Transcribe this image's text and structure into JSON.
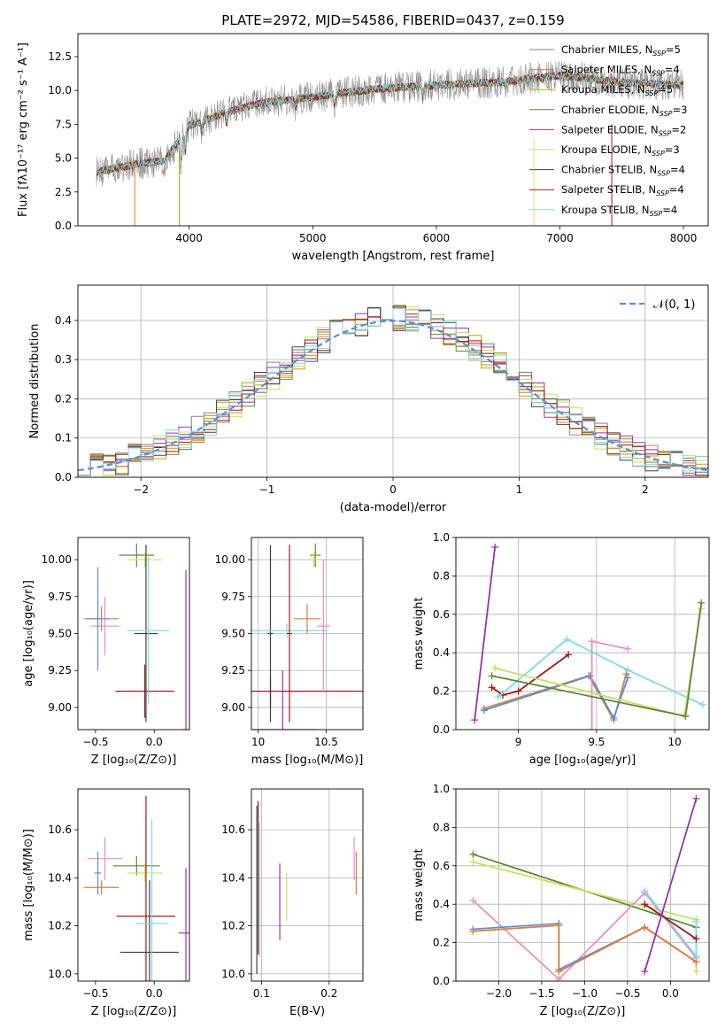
{
  "chart_data": [
    {
      "id": "spectrum",
      "type": "line",
      "title": "PLATE=2972, MJD=54586, FIBERID=0437, z=0.159",
      "xlabel": "wavelength [Angstrom, rest frame]",
      "ylabel": "Flux [fλ10⁻¹⁷ erg cm⁻² s⁻¹ A⁻¹]",
      "xlim": [
        3100,
        8200
      ],
      "ylim": [
        0,
        14.2
      ],
      "xticks": [
        4000,
        5000,
        6000,
        7000,
        8000
      ],
      "yticks": [
        0.0,
        2.5,
        5.0,
        7.5,
        10.0,
        12.5
      ],
      "ytick_format": 1,
      "grid": false,
      "legend_position": "top-right",
      "data_range_x": [
        3250,
        8000
      ],
      "continuum": [
        [
          3250,
          4.0
        ],
        [
          3600,
          4.6
        ],
        [
          3800,
          4.8
        ],
        [
          4000,
          7.4
        ],
        [
          4300,
          8.4
        ],
        [
          4600,
          9.1
        ],
        [
          5000,
          9.5
        ],
        [
          5500,
          10.1
        ],
        [
          6000,
          10.4
        ],
        [
          6500,
          10.6
        ],
        [
          7000,
          11.1
        ],
        [
          7500,
          10.6
        ],
        [
          8000,
          10.4
        ]
      ],
      "series": [
        {
          "name": "Chabrier MILES, N_SSP=5",
          "color": "#808080",
          "noisy": true
        },
        {
          "name": "Salpeter MILES, N_SSP=4",
          "color": "#e07b39"
        },
        {
          "name": "Kroupa MILES, N_SSP=5",
          "color": "#c8a000"
        },
        {
          "name": "Chabrier ELODIE, N_SSP=3",
          "color": "#5a8a3a"
        },
        {
          "name": "Salpeter ELODIE, N_SSP=2",
          "color": "#9b30b0"
        },
        {
          "name": "Kroupa ELODIE, N_SSP=3",
          "color": "#c8e060"
        },
        {
          "name": "Chabrier STELIB, N_SSP=4",
          "color": "#404040"
        },
        {
          "name": "Salpeter STELIB, N_SSP=4",
          "color": "#a01818"
        },
        {
          "name": "Kroupa STELIB, N_SSP=4",
          "color": "#80d8e8"
        }
      ]
    },
    {
      "id": "residuals",
      "type": "histogram",
      "xlabel": "(data-model)/error",
      "ylabel": "Normed distribution",
      "xlim": [
        -2.5,
        2.5
      ],
      "ylim": [
        0,
        0.49
      ],
      "xticks": [
        -2,
        -1,
        0,
        1,
        2
      ],
      "yticks": [
        0.0,
        0.1,
        0.2,
        0.3,
        0.4
      ],
      "ytick_format": 1,
      "grid": true,
      "bin_width": 0.1,
      "reference_curve": {
        "name": "𝒩(0, 1)",
        "color": "#5b8fd8",
        "style": "dashed"
      },
      "legend_position": "top-right",
      "hist_colors": [
        "#808080",
        "#e07b39",
        "#c8a000",
        "#5a8a3a",
        "#9b30b0",
        "#c8e060",
        "#404040",
        "#a01818",
        "#80d8e8"
      ]
    },
    {
      "id": "z-age",
      "type": "errorbar",
      "xlabel": "Z [log₁₀(Z/Z⊙)]",
      "ylabel": "age  [log₁₀(age/yr)]",
      "xlim": [
        -0.65,
        0.3
      ],
      "ylim": [
        8.85,
        10.15
      ],
      "xticks": [
        -0.5,
        0.0
      ],
      "xtick_labels": [
        "−0.5",
        "0.0"
      ],
      "yticks": [
        9.0,
        9.25,
        9.5,
        9.75,
        10.0
      ],
      "ytick_format": 2,
      "grid": false,
      "points": [
        {
          "x": -0.45,
          "y": 9.6,
          "xerr": 0.15,
          "yerr": 0.08,
          "color": "#e07b39"
        },
        {
          "x": -0.42,
          "y": 9.55,
          "xerr": 0.12,
          "yerr": 0.2,
          "color": "#e88fc8"
        },
        {
          "x": -0.48,
          "y": 9.6,
          "xerr": 0.1,
          "yerr": 0.35,
          "color": "#5b8fd8"
        },
        {
          "x": -0.15,
          "y": 10.03,
          "xerr": 0.15,
          "yerr": 0.08,
          "color": "#5a8a3a"
        },
        {
          "x": -0.08,
          "y": 10.0,
          "xerr": 0.15,
          "yerr": 0.05,
          "color": "#c8e060"
        },
        {
          "x": -0.08,
          "y": 9.11,
          "xerr": 0.25,
          "yerr": 0.18,
          "color": "#a01818"
        },
        {
          "x": -0.07,
          "y": 9.5,
          "xerr": 0.1,
          "yerr": 0.6,
          "color": "#404040"
        },
        {
          "x": -0.05,
          "y": 9.52,
          "xerr": 0.18,
          "yerr": 0.5,
          "color": "#80d8e8"
        },
        {
          "x": 0.27,
          "y": 8.85,
          "xerr": 0.03,
          "yerr": 1.08,
          "color": "#9b30b0"
        }
      ]
    },
    {
      "id": "mass-age",
      "type": "errorbar",
      "xlabel": "mass [log₁₀(M/M⊙)]",
      "ylabel": "",
      "xlim": [
        9.95,
        10.77
      ],
      "ylim": [
        8.85,
        10.15
      ],
      "xticks": [
        10.0,
        10.5
      ],
      "yticks": [
        9.0,
        9.25,
        9.5,
        9.75,
        10.0
      ],
      "ytick_format": 2,
      "grid": true,
      "points": [
        {
          "x": 10.09,
          "y": 9.11,
          "xerr": 0.95,
          "yerr": 0.1,
          "color": "#a01818"
        },
        {
          "x": 10.09,
          "y": 9.5,
          "xerr": 0.02,
          "yerr": 0.6,
          "color": "#404040"
        },
        {
          "x": 10.18,
          "y": 8.85,
          "xerr": 0.25,
          "yerr": 0.4,
          "color": "#9b30b0"
        },
        {
          "x": 10.21,
          "y": 9.52,
          "xerr": 0.3,
          "yerr": 0.05,
          "color": "#80d8e8"
        },
        {
          "x": 10.23,
          "y": 9.5,
          "xerr": 0.02,
          "yerr": 0.6,
          "color": "#a01818"
        },
        {
          "x": 10.36,
          "y": 9.6,
          "xerr": 0.1,
          "yerr": 0.1,
          "color": "#e07b39"
        },
        {
          "x": 10.48,
          "y": 9.55,
          "xerr": 0.05,
          "yerr": 0.45,
          "color": "#e88fc8"
        },
        {
          "x": 10.42,
          "y": 10.03,
          "xerr": 0.04,
          "yerr": 0.08,
          "color": "#5a8a3a"
        },
        {
          "x": 10.41,
          "y": 10.0,
          "xerr": 0.04,
          "yerr": 0.05,
          "color": "#c8e060"
        }
      ]
    },
    {
      "id": "weight-age",
      "type": "line",
      "xlabel": "age  [log₁₀(age/yr)]",
      "ylabel": "mass weight",
      "xlim": [
        8.6,
        10.22
      ],
      "ylim": [
        0.0,
        1.0
      ],
      "xticks": [
        9.0,
        9.5,
        10.0
      ],
      "yticks": [
        0.0,
        0.2,
        0.4,
        0.6,
        0.8,
        1.0
      ],
      "ytick_format": 1,
      "grid": true,
      "series": [
        {
          "color": "#9b30b0",
          "points": [
            [
              8.72,
              0.05
            ],
            [
              8.85,
              0.95
            ]
          ]
        },
        {
          "color": "#a01818",
          "points": [
            [
              8.83,
              0.22
            ],
            [
              8.9,
              0.18
            ],
            [
              9.0,
              0.2
            ],
            [
              9.32,
              0.39
            ]
          ]
        },
        {
          "color": "#e07b39",
          "points": [
            [
              8.78,
              0.11
            ],
            [
              9.45,
              0.28
            ],
            [
              9.61,
              0.05
            ],
            [
              9.69,
              0.29
            ]
          ]
        },
        {
          "color": "#5b8fd8",
          "points": [
            [
              8.78,
              0.1
            ],
            [
              9.46,
              0.28
            ],
            [
              9.61,
              0.06
            ],
            [
              9.7,
              0.27
            ]
          ]
        },
        {
          "color": "#e88fc8",
          "points": [
            [
              9.47,
              0.0
            ],
            [
              9.47,
              0.46
            ],
            [
              9.7,
              0.42
            ]
          ]
        },
        {
          "color": "#80d8e8",
          "points": [
            [
              8.87,
              0.17
            ],
            [
              9.31,
              0.47
            ],
            [
              9.7,
              0.31
            ],
            [
              10.18,
              0.13
            ]
          ]
        },
        {
          "color": "#c8e060",
          "points": [
            [
              8.85,
              0.32
            ],
            [
              10.06,
              0.07
            ],
            [
              10.17,
              0.63
            ]
          ]
        },
        {
          "color": "#5a8a3a",
          "points": [
            [
              8.83,
              0.28
            ],
            [
              10.07,
              0.07
            ],
            [
              10.17,
              0.66
            ]
          ]
        }
      ]
    },
    {
      "id": "z-mass",
      "type": "errorbar",
      "xlabel": "Z [log₁₀(Z/Z⊙)]",
      "ylabel": "mass [log₁₀(M/M⊙)]",
      "xlim": [
        -0.65,
        0.3
      ],
      "ylim": [
        9.97,
        10.77
      ],
      "xticks": [
        -0.5,
        0.0
      ],
      "xtick_labels": [
        "−0.5",
        "0.0"
      ],
      "yticks": [
        10.0,
        10.2,
        10.4,
        10.6
      ],
      "ytick_format": 1,
      "grid": false,
      "points": [
        {
          "x": -0.45,
          "y": 10.36,
          "xerr": 0.15,
          "yerr": 0.03,
          "color": "#e07b39"
        },
        {
          "x": -0.42,
          "y": 10.48,
          "xerr": 0.15,
          "yerr": 0.09,
          "color": "#e88fc8"
        },
        {
          "x": -0.48,
          "y": 10.42,
          "xerr": 0.03,
          "yerr": 0.09,
          "color": "#5b8fd8"
        },
        {
          "x": -0.15,
          "y": 10.45,
          "xerr": 0.2,
          "yerr": 0.04,
          "color": "#5a8a3a"
        },
        {
          "x": -0.08,
          "y": 10.42,
          "xerr": 0.15,
          "yerr": 0.04,
          "color": "#c8e060"
        },
        {
          "x": -0.07,
          "y": 10.24,
          "xerr": 0.25,
          "yerr": 0.5,
          "color": "#a01818"
        },
        {
          "x": -0.04,
          "y": 10.09,
          "xerr": 0.25,
          "yerr": 0.3,
          "color": "#404040"
        },
        {
          "x": -0.02,
          "y": 10.21,
          "xerr": 0.14,
          "yerr": 0.43,
          "color": "#80d8e8"
        },
        {
          "x": 0.27,
          "y": 10.17,
          "xerr": 0.06,
          "yerr": 0.27,
          "color": "#9b30b0"
        }
      ]
    },
    {
      "id": "ebv-mass",
      "type": "errorbar",
      "xlabel": "E(B-V)",
      "ylabel": "",
      "xlim": [
        0.085,
        0.25
      ],
      "ylim": [
        9.97,
        10.77
      ],
      "xticks": [
        0.1,
        0.2
      ],
      "yticks": [
        10.0,
        10.2,
        10.4,
        10.6
      ],
      "ytick_format": 1,
      "grid": true,
      "points": [
        {
          "x": 0.093,
          "y": 10.35,
          "xerr": 0.0,
          "yerr": 0.35,
          "color": "#404040"
        },
        {
          "x": 0.095,
          "y": 10.4,
          "xerr": 0.0,
          "yerr": 0.32,
          "color": "#a01818"
        },
        {
          "x": 0.097,
          "y": 10.35,
          "xerr": 0.0,
          "yerr": 0.28,
          "color": "#80d8e8"
        },
        {
          "x": 0.127,
          "y": 10.3,
          "xerr": 0.0,
          "yerr": 0.16,
          "color": "#9b30b0"
        },
        {
          "x": 0.137,
          "y": 10.32,
          "xerr": 0.0,
          "yerr": 0.1,
          "color": "#c8e060"
        },
        {
          "x": 0.237,
          "y": 10.48,
          "xerr": 0.0,
          "yerr": 0.09,
          "color": "#e88fc8"
        },
        {
          "x": 0.24,
          "y": 10.42,
          "xerr": 0.0,
          "yerr": 0.09,
          "color": "#e07b39"
        }
      ]
    },
    {
      "id": "weight-z",
      "type": "line",
      "xlabel": "Z [log₁₀(Z/Z⊙)]",
      "ylabel": "mass weight",
      "xlim": [
        -2.5,
        0.45
      ],
      "ylim": [
        0.0,
        1.0
      ],
      "xticks": [
        -2.0,
        -1.5,
        -1.0,
        -0.5,
        0.0
      ],
      "xtick_labels": [
        "−2.0",
        "−1.5",
        "−1.0",
        "−0.5",
        "0.0"
      ],
      "yticks": [
        0.0,
        0.2,
        0.4,
        0.6,
        0.8,
        1.0
      ],
      "ytick_format": 1,
      "grid": true,
      "series": [
        {
          "color": "#5a8a3a",
          "points": [
            [
              -2.3,
              0.66
            ],
            [
              0.3,
              0.28
            ]
          ]
        },
        {
          "color": "#c8e060",
          "points": [
            [
              -2.3,
              0.62
            ],
            [
              0.3,
              0.32
            ],
            [
              0.3,
              0.05
            ]
          ]
        },
        {
          "color": "#e88fc8",
          "points": [
            [
              -2.3,
              0.42
            ],
            [
              -1.3,
              0.01
            ],
            [
              -0.3,
              0.46
            ],
            [
              0.3,
              0.12
            ]
          ]
        },
        {
          "color": "#5b8fd8",
          "points": [
            [
              -2.3,
              0.27
            ],
            [
              -1.3,
              0.3
            ],
            [
              -1.3,
              0.06
            ],
            [
              -0.3,
              0.28
            ],
            [
              0.3,
              0.1
            ]
          ]
        },
        {
          "color": "#e07b39",
          "points": [
            [
              -2.3,
              0.26
            ],
            [
              -1.3,
              0.29
            ],
            [
              -1.3,
              0.05
            ],
            [
              -0.3,
              0.28
            ],
            [
              0.3,
              0.1
            ]
          ]
        },
        {
          "color": "#80d8e8",
          "points": [
            [
              -0.3,
              0.47
            ],
            [
              0.3,
              0.13
            ],
            [
              0.3,
              0.31
            ]
          ]
        },
        {
          "color": "#a01818",
          "points": [
            [
              -0.3,
              0.4
            ],
            [
              0.3,
              0.22
            ]
          ]
        },
        {
          "color": "#9b30b0",
          "points": [
            [
              -0.3,
              0.05
            ],
            [
              0.3,
              0.95
            ]
          ]
        }
      ]
    }
  ]
}
